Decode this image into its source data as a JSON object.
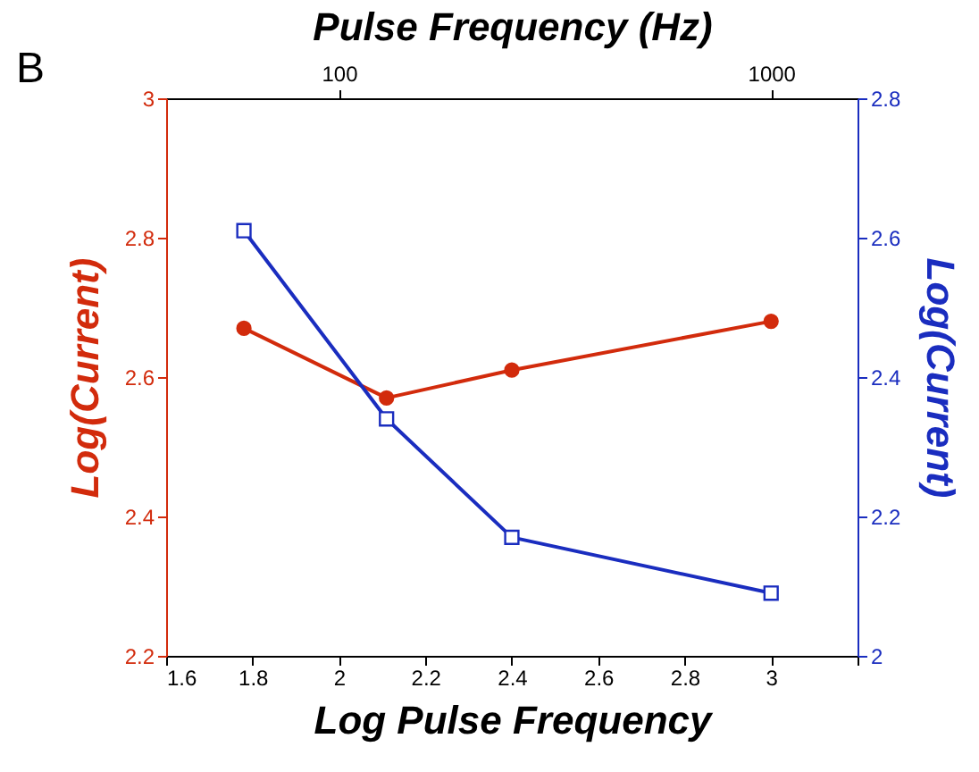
{
  "chart_data": {
    "type": "line",
    "xlabel": "Log Pulse Frequency",
    "ylabel": "Log(Current)",
    "y2label": "Log(Current)",
    "x2label": "Pulse Frequency (Hz)",
    "annotations": [
      "B"
    ],
    "x": [
      1.78,
      2.11,
      2.4,
      3.0
    ],
    "xlim": [
      1.6,
      3.2
    ],
    "xticks": [
      1.6,
      1.8,
      2.0,
      2.2,
      2.4,
      2.6,
      2.8,
      3.0,
      {
        "value": 3.2,
        "label": null
      }
    ],
    "x2lim": [
      39.81,
      1584.9
    ],
    "x2ticks": [
      100,
      1000
    ],
    "log": "x2",
    "ylim": [
      2.2,
      3.0
    ],
    "yticks": [
      2.2,
      2.4,
      2.6,
      2.8,
      3.0
    ],
    "y2lim": [
      2.0,
      2.8
    ],
    "y2ticks": [
      2.0,
      2.2,
      2.4,
      2.6,
      2.8
    ],
    "grid": false,
    "line_style": "solid",
    "series": [
      {
        "color": "#d22b0c",
        "marker": "circle",
        "values": [
          2.67,
          2.57,
          2.61,
          2.68
        ]
      },
      {
        "color": "#1a2dbf",
        "marker": "square",
        "axis": "y2",
        "values": [
          2.61,
          2.34,
          2.17,
          2.09
        ]
      }
    ]
  }
}
